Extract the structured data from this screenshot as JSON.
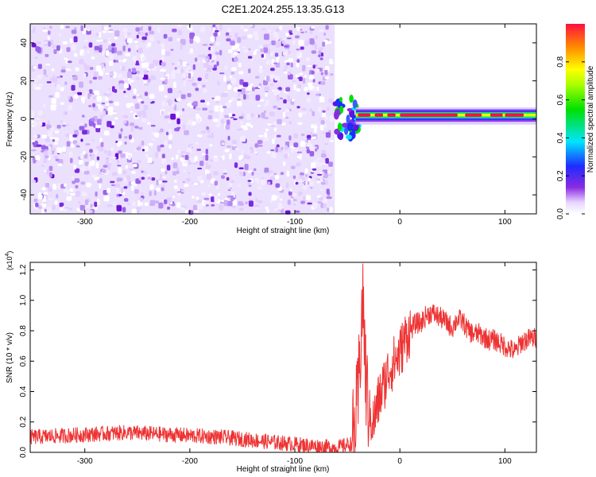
{
  "title": "C2E1.2024.255.13.35.G13",
  "chart_data": [
    {
      "type": "heatmap",
      "xlabel": "Height of straight line (km)",
      "ylabel": "Frequency (Hz)",
      "xlim": [
        -352,
        130
      ],
      "ylim": [
        -50,
        50
      ],
      "xticks": [
        -300,
        -200,
        -100,
        0,
        100
      ],
      "yticks": [
        -40,
        -20,
        0,
        20,
        40
      ],
      "colorbar": {
        "label": "Normalized spectral amplitude",
        "range": [
          0.0,
          1.0
        ],
        "ticks": [
          0.0,
          0.2,
          0.4,
          0.6,
          0.8
        ],
        "colormap": "rainbow (white-violet-blue-cyan-green-yellow-red)"
      },
      "description_regions": [
        {
          "x_range": [
            -352,
            -62
          ],
          "freq_range": [
            -50,
            50
          ],
          "amplitude": "low (0.0-0.2), noise"
        },
        {
          "x_range": [
            -62,
            -40
          ],
          "freq_range": [
            -12,
            12
          ],
          "amplitude": "mixed 0.2-1.0, transition"
        },
        {
          "x_range": [
            -40,
            130
          ],
          "freq_range": [
            0,
            4
          ],
          "amplitude": "high (0.8-1.0) narrow carrier line"
        }
      ]
    },
    {
      "type": "line",
      "xlabel": "Height of straight line (km)",
      "ylabel": "SNR (10 * v/v)",
      "y_scale_label": "(x10",
      "y_scale_exp": "4",
      "xlim": [
        -352,
        130
      ],
      "ylim": [
        0.0,
        1.25
      ],
      "xticks": [
        -300,
        -200,
        -100,
        0,
        100
      ],
      "yticks": [
        0.0,
        0.2,
        0.4,
        0.6,
        0.8,
        1.0,
        1.2
      ],
      "series": [
        {
          "color": "#ee3333",
          "x": [
            -352,
            -320,
            -290,
            -260,
            -230,
            -200,
            -170,
            -140,
            -110,
            -80,
            -60,
            -45,
            -40,
            -37,
            -35,
            -33,
            -30,
            -25,
            -20,
            -15,
            -10,
            -5,
            0,
            5,
            10,
            15,
            20,
            25,
            30,
            35,
            40,
            45,
            50,
            55,
            60,
            65,
            70,
            75,
            80,
            85,
            90,
            95,
            100,
            105,
            110,
            115,
            120,
            125,
            130
          ],
          "y": [
            0.1,
            0.11,
            0.12,
            0.13,
            0.12,
            0.11,
            0.1,
            0.08,
            0.06,
            0.04,
            0.03,
            0.06,
            0.3,
            0.8,
            1.05,
            0.55,
            0.25,
            0.2,
            0.35,
            0.45,
            0.55,
            0.6,
            0.65,
            0.75,
            0.8,
            0.85,
            0.85,
            0.9,
            0.92,
            0.9,
            0.88,
            0.85,
            0.82,
            0.88,
            0.86,
            0.8,
            0.78,
            0.78,
            0.76,
            0.74,
            0.74,
            0.72,
            0.7,
            0.68,
            0.66,
            0.72,
            0.74,
            0.75,
            0.75
          ]
        }
      ]
    }
  ]
}
